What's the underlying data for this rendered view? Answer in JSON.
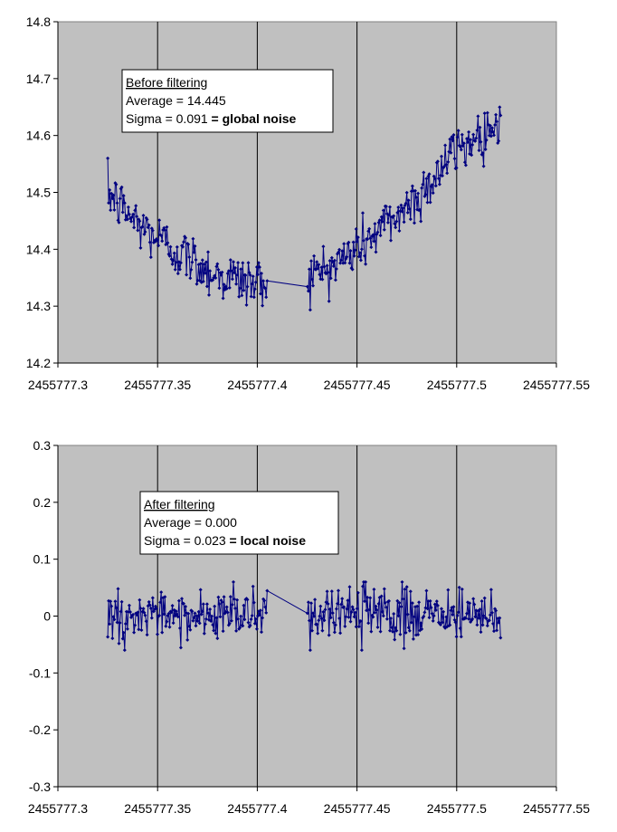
{
  "chart_data": [
    {
      "type": "line",
      "title": "",
      "xlabel": "",
      "ylabel": "",
      "xlim": [
        2455777.3,
        2455777.55
      ],
      "ylim": [
        14.2,
        14.8
      ],
      "x_ticks": [
        "2455777.3",
        "2455777.35",
        "2455777.4",
        "2455777.45",
        "2455777.5",
        "2455777.55"
      ],
      "y_ticks": [
        "14.8",
        "14.7",
        "14.6",
        "14.5",
        "14.4",
        "14.3",
        "14.2"
      ],
      "grid": "vertical",
      "colors": {
        "plot_bg": "#c0c0c0",
        "series": "#000080",
        "border": "#808080"
      },
      "annotation": {
        "title": "Before filtering",
        "line1": "Average = 14.445",
        "line2_prefix": "Sigma = 0.091",
        "line2_bold": " = global noise"
      },
      "series": [
        {
          "x_start": 2455777.325,
          "x_end": 2455777.522,
          "gap": [
            2455777.405,
            2455777.425
          ],
          "trend_x": [
            2455777.325,
            2455777.34,
            2455777.36,
            2455777.38,
            2455777.4,
            2455777.405,
            2455777.425,
            2455777.44,
            2455777.46,
            2455777.48,
            2455777.5,
            2455777.522
          ],
          "trend_y": [
            14.5,
            14.445,
            14.395,
            14.355,
            14.34,
            14.342,
            14.35,
            14.375,
            14.43,
            14.49,
            14.575,
            14.625
          ],
          "sigma": 0.023,
          "count": 420
        }
      ]
    },
    {
      "type": "line",
      "title": "",
      "xlabel": "",
      "ylabel": "",
      "xlim": [
        2455777.3,
        2455777.55
      ],
      "ylim": [
        -0.3,
        0.3
      ],
      "x_ticks": [
        "2455777.3",
        "2455777.35",
        "2455777.4",
        "2455777.45",
        "2455777.5",
        "2455777.55"
      ],
      "y_ticks": [
        "0.3",
        "0.2",
        "0.1",
        "0",
        "-0.1",
        "-0.2",
        "-0.3"
      ],
      "grid": "vertical",
      "colors": {
        "plot_bg": "#c0c0c0",
        "series": "#000080",
        "border": "#808080"
      },
      "annotation": {
        "title": "After filtering",
        "line1": "Average = 0.000",
        "line2_prefix": "Sigma = 0.023",
        "line2_bold": " = local noise"
      },
      "series": [
        {
          "x_start": 2455777.325,
          "x_end": 2455777.522,
          "gap": [
            2455777.405,
            2455777.425
          ],
          "trend_x": [
            2455777.325,
            2455777.522
          ],
          "trend_y": [
            0.0,
            0.0
          ],
          "sigma": 0.023,
          "count": 420
        }
      ]
    }
  ]
}
